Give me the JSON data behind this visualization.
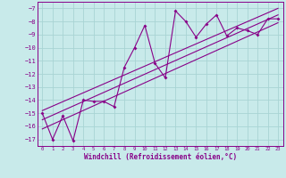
{
  "xlabel": "Windchill (Refroidissement éolien,°C)",
  "bg_color": "#c8eaea",
  "grid_color": "#a8d4d4",
  "line_color": "#880088",
  "xlim": [
    -0.5,
    23.5
  ],
  "ylim": [
    -17.5,
    -6.5
  ],
  "xticks": [
    0,
    1,
    2,
    3,
    4,
    5,
    6,
    7,
    8,
    9,
    10,
    11,
    12,
    13,
    14,
    15,
    16,
    17,
    18,
    19,
    20,
    21,
    22,
    23
  ],
  "yticks": [
    -17,
    -16,
    -15,
    -14,
    -13,
    -12,
    -11,
    -10,
    -9,
    -8,
    -7
  ],
  "data_x": [
    0,
    1,
    2,
    3,
    4,
    5,
    6,
    7,
    8,
    9,
    10,
    11,
    12,
    13,
    14,
    15,
    16,
    17,
    18,
    19,
    20,
    21,
    22,
    23
  ],
  "data_y": [
    -15.0,
    -17.0,
    -15.2,
    -17.1,
    -14.0,
    -14.1,
    -14.1,
    -14.5,
    -11.5,
    -10.0,
    -8.3,
    -11.2,
    -12.3,
    -7.2,
    -8.0,
    -9.2,
    -8.2,
    -7.5,
    -9.1,
    -8.5,
    -8.7,
    -9.0,
    -7.8,
    -7.8
  ],
  "reg_lines": [
    [
      -15.5,
      -7.5
    ],
    [
      -14.8,
      -7.0
    ],
    [
      -16.2,
      -8.1
    ]
  ]
}
